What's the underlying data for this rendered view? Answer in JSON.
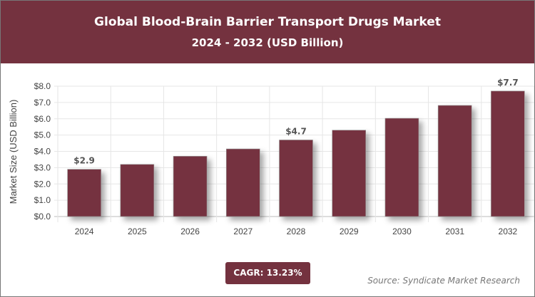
{
  "header": {
    "title": "Global Blood-Brain Barrier Transport Drugs Market",
    "subtitle": "2024 - 2032 (USD Billion)"
  },
  "chart_data": {
    "type": "bar",
    "categories": [
      "2024",
      "2025",
      "2026",
      "2027",
      "2028",
      "2029",
      "2030",
      "2031",
      "2032"
    ],
    "values": [
      2.9,
      3.2,
      3.7,
      4.15,
      4.7,
      5.3,
      6.03,
      6.82,
      7.7
    ],
    "data_labels": {
      "0": "$2.9",
      "4": "$4.7",
      "8": "$7.7"
    },
    "ylabel": "Market Size (USD Billion)",
    "ylim": [
      0,
      8
    ],
    "yticks": [
      "$0.0",
      "$1.0",
      "$2.0",
      "$3.0",
      "$4.0",
      "$5.0",
      "$6.0",
      "$7.0",
      "$8.0"
    ],
    "grid": true,
    "bar_color": "#74323f"
  },
  "footer": {
    "cagr": "CAGR: 13.23%",
    "source": "Source: Syndicate Market Research"
  }
}
